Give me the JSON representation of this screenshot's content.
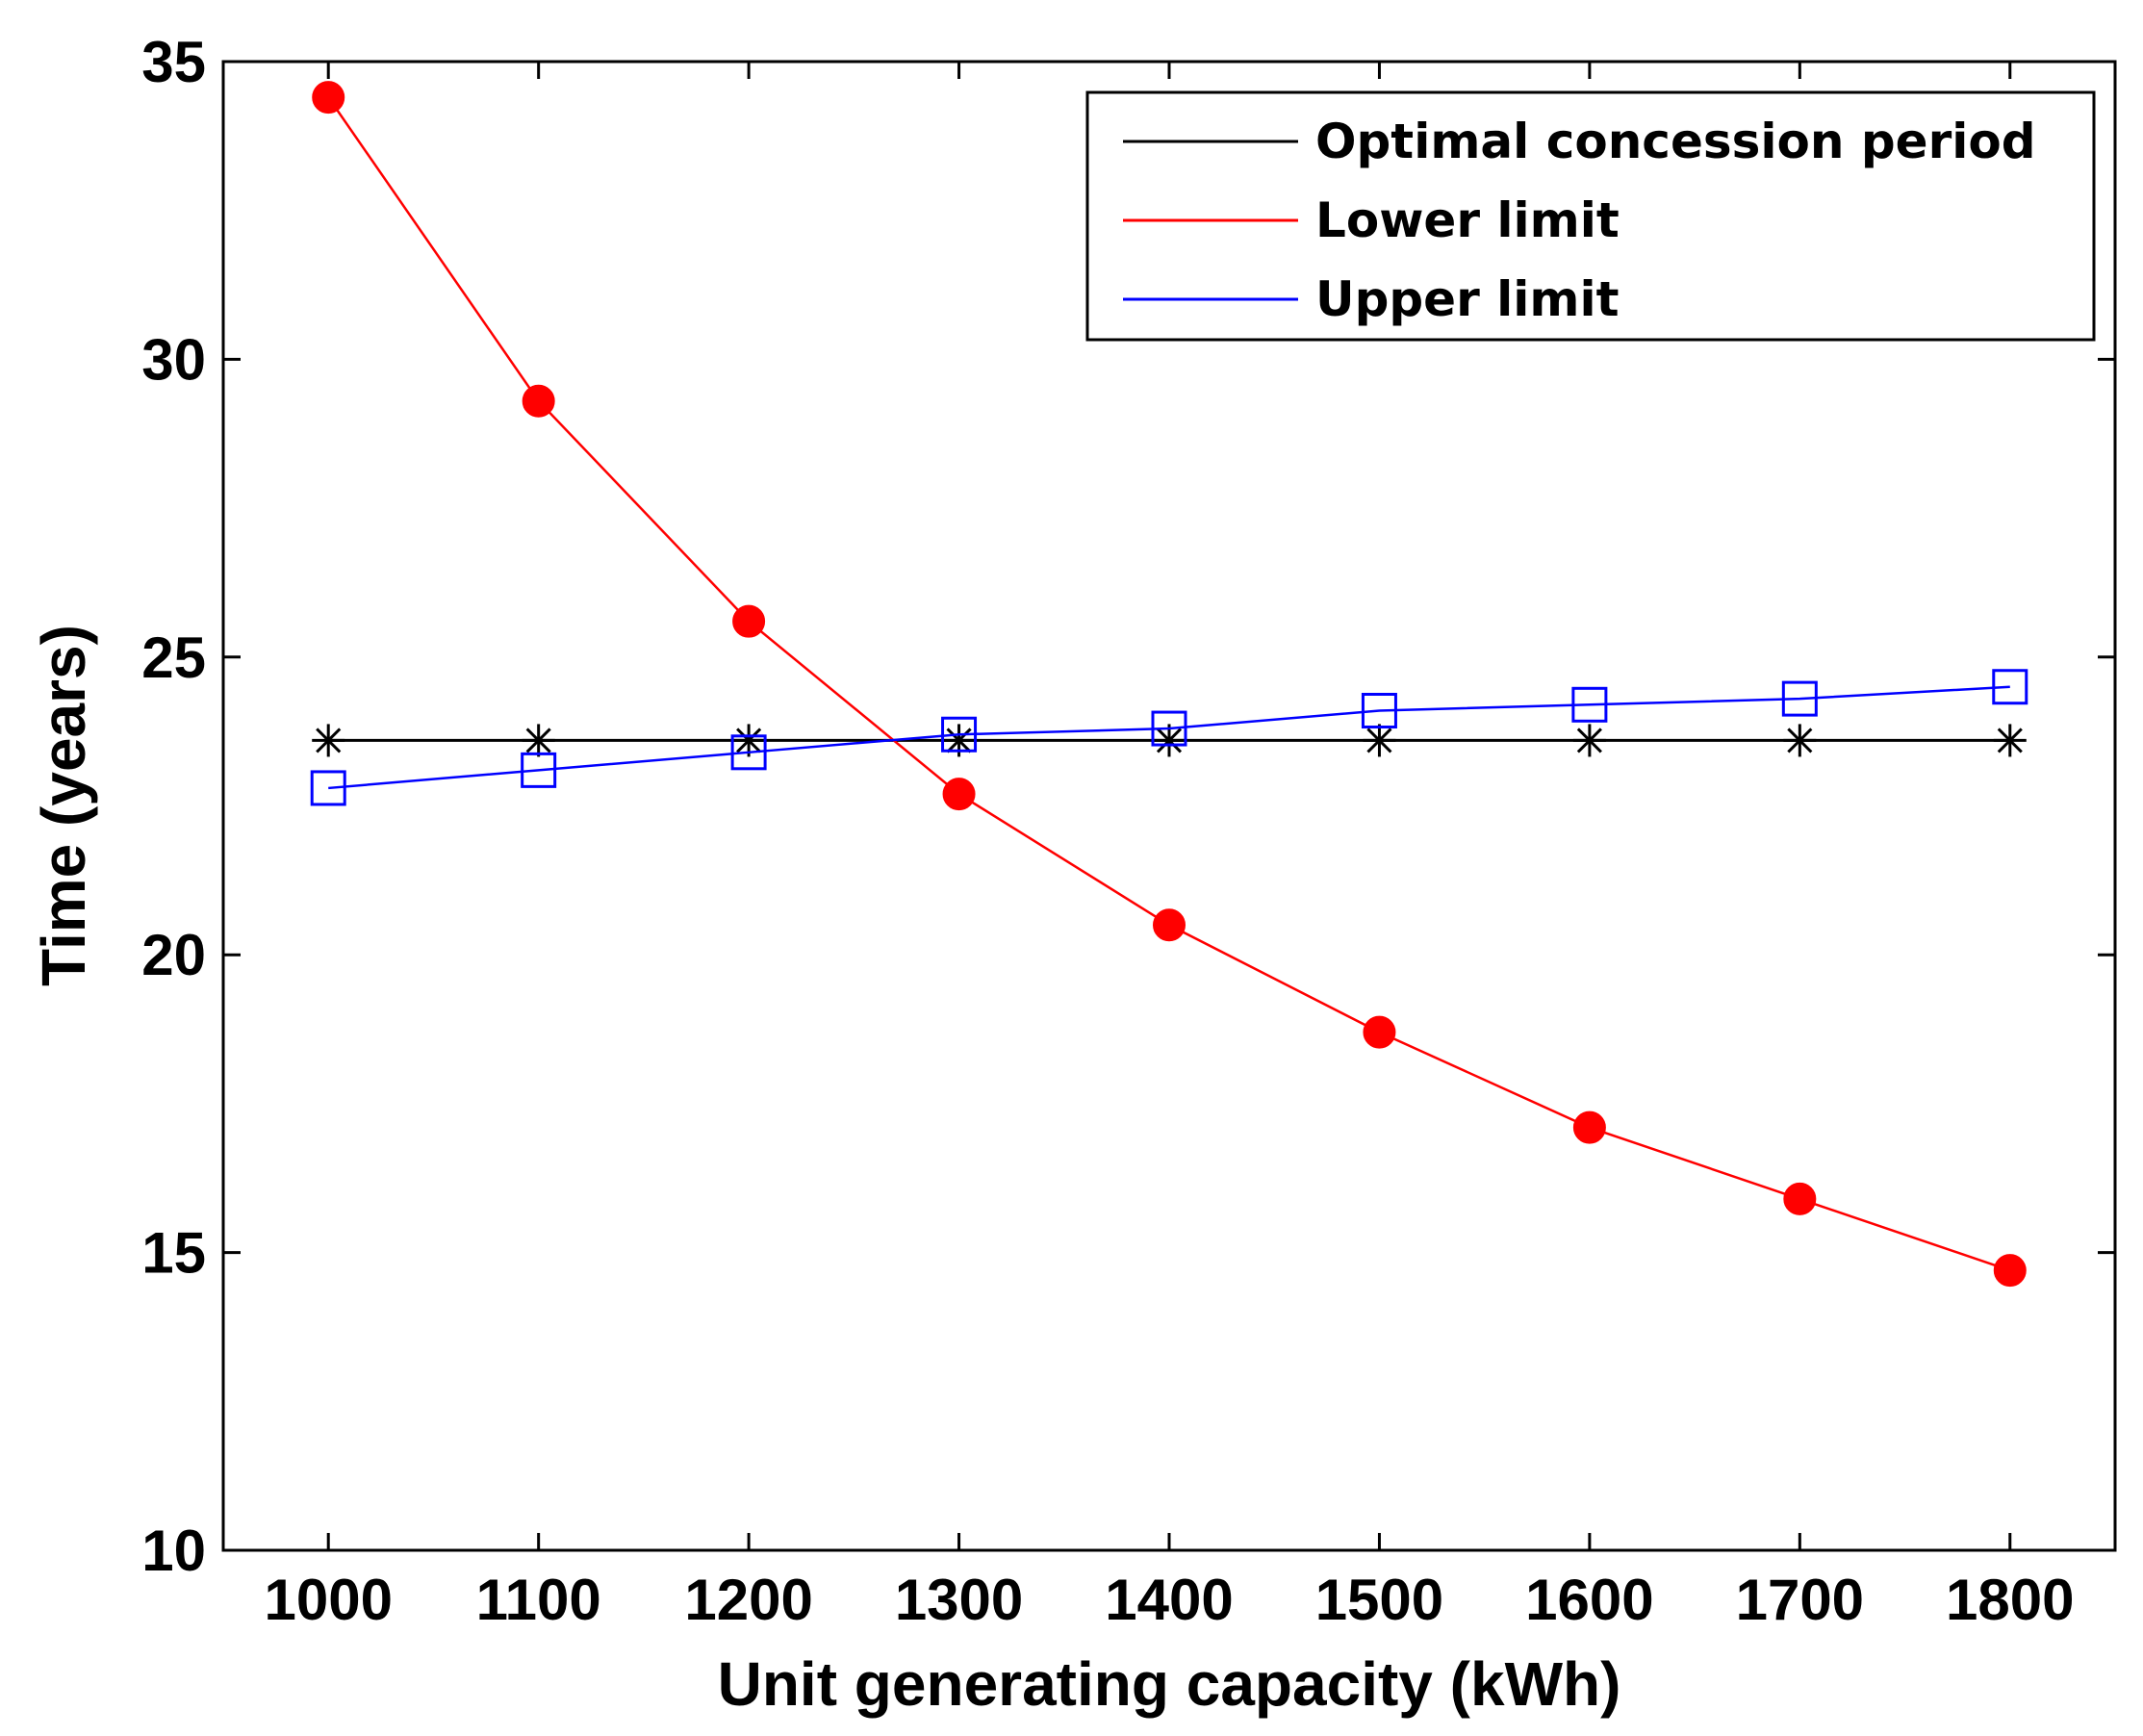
{
  "chart_data": {
    "type": "line",
    "title": "",
    "xlabel": "Unit generating capacity (kWh)",
    "ylabel": "Time (years)",
    "x": [
      1000,
      1100,
      1200,
      1300,
      1400,
      1500,
      1600,
      1700,
      1800
    ],
    "xlim": [
      950,
      1850
    ],
    "ylim": [
      10,
      35
    ],
    "xticks": [
      "1000",
      "1100",
      "1200",
      "1300",
      "1400",
      "1500",
      "1600",
      "1700",
      "1800"
    ],
    "yticks": [
      "10",
      "15",
      "20",
      "25",
      "30",
      "35"
    ],
    "grid": false,
    "legend_position": "top-right",
    "series": [
      {
        "name": "Optimal concession period",
        "color": "#000000",
        "marker": "asterisk",
        "values": [
          23.6,
          23.6,
          23.6,
          23.6,
          23.6,
          23.6,
          23.6,
          23.6,
          23.6
        ]
      },
      {
        "name": "Lower limit",
        "color": "#ff0000",
        "marker": "filled-circle",
        "values": [
          34.4,
          29.3,
          25.6,
          22.7,
          20.5,
          18.7,
          17.1,
          15.9,
          14.7
        ]
      },
      {
        "name": "Upper limit",
        "color": "#0000ff",
        "marker": "open-square",
        "values": [
          22.8,
          23.1,
          23.4,
          23.7,
          23.8,
          24.1,
          24.2,
          24.3,
          24.5
        ]
      }
    ]
  }
}
